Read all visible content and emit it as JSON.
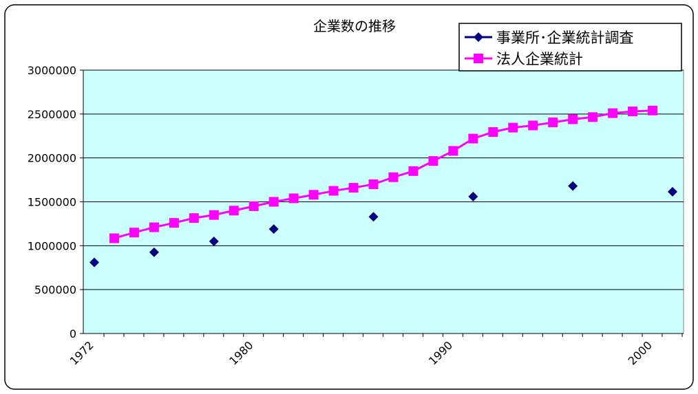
{
  "chart_data": {
    "type": "line",
    "title": "企業数の推移",
    "xlabel": "",
    "ylabel": "",
    "x_range": [
      1972,
      2001
    ],
    "x_tick_labels": [
      "1972",
      "1980",
      "1990",
      "2000"
    ],
    "ylim": [
      0,
      3000000
    ],
    "y_tick_labels": [
      "0",
      "500000",
      "1000000",
      "1500000",
      "2000000",
      "2500000",
      "3000000"
    ],
    "grid": true,
    "legend_position": "top-right",
    "plot_background": "#ccffff",
    "series": [
      {
        "name": "事業所･企業統計調査",
        "color": "#000080",
        "marker": "diamond",
        "line": false,
        "points": [
          {
            "x": 1972,
            "y": 810000
          },
          {
            "x": 1975,
            "y": 925000
          },
          {
            "x": 1978,
            "y": 1050000
          },
          {
            "x": 1981,
            "y": 1190000
          },
          {
            "x": 1986,
            "y": 1330000
          },
          {
            "x": 1991,
            "y": 1560000
          },
          {
            "x": 1996,
            "y": 1680000
          },
          {
            "x": 2001,
            "y": 1615000
          }
        ]
      },
      {
        "name": "法人企業統計",
        "color": "#ff00ff",
        "marker": "square",
        "line": true,
        "points": [
          {
            "x": 1973,
            "y": 1085000
          },
          {
            "x": 1974,
            "y": 1150000
          },
          {
            "x": 1975,
            "y": 1210000
          },
          {
            "x": 1976,
            "y": 1260000
          },
          {
            "x": 1977,
            "y": 1315000
          },
          {
            "x": 1978,
            "y": 1350000
          },
          {
            "x": 1979,
            "y": 1400000
          },
          {
            "x": 1980,
            "y": 1450000
          },
          {
            "x": 1981,
            "y": 1500000
          },
          {
            "x": 1982,
            "y": 1540000
          },
          {
            "x": 1983,
            "y": 1580000
          },
          {
            "x": 1984,
            "y": 1625000
          },
          {
            "x": 1985,
            "y": 1660000
          },
          {
            "x": 1986,
            "y": 1700000
          },
          {
            "x": 1987,
            "y": 1780000
          },
          {
            "x": 1988,
            "y": 1850000
          },
          {
            "x": 1989,
            "y": 1965000
          },
          {
            "x": 1990,
            "y": 2080000
          },
          {
            "x": 1991,
            "y": 2220000
          },
          {
            "x": 1992,
            "y": 2295000
          },
          {
            "x": 1993,
            "y": 2345000
          },
          {
            "x": 1994,
            "y": 2370000
          },
          {
            "x": 1995,
            "y": 2405000
          },
          {
            "x": 1996,
            "y": 2440000
          },
          {
            "x": 1997,
            "y": 2465000
          },
          {
            "x": 1998,
            "y": 2510000
          },
          {
            "x": 1999,
            "y": 2530000
          },
          {
            "x": 2000,
            "y": 2540000
          }
        ]
      }
    ]
  }
}
